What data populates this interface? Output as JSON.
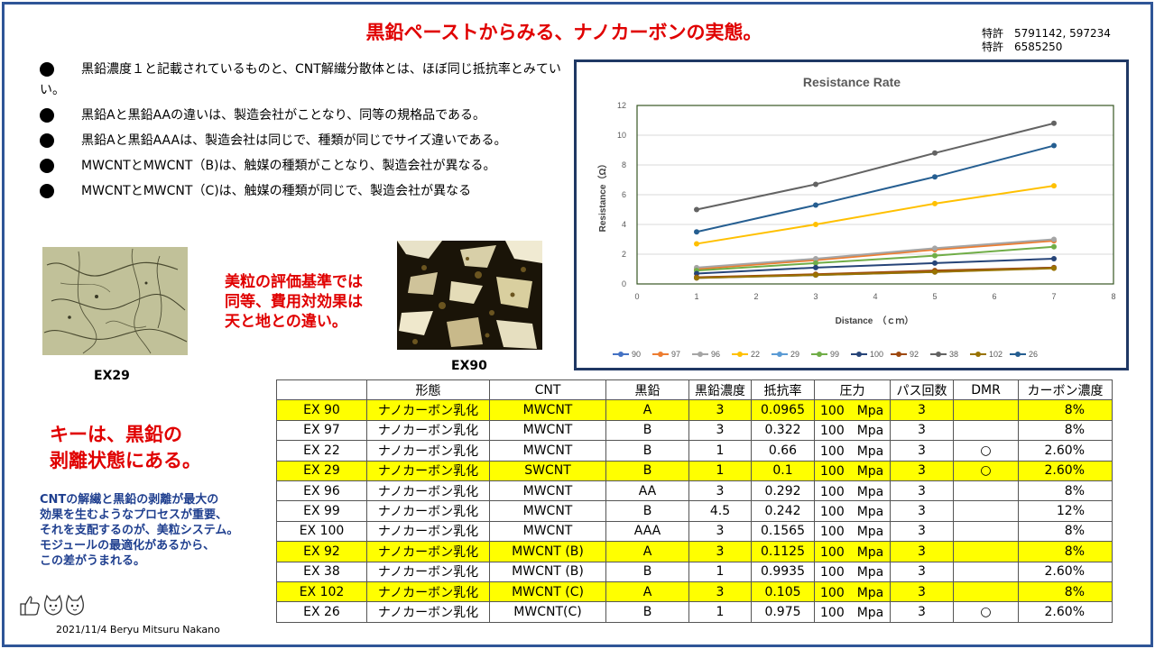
{
  "title": "黒鉛ペーストからみる、ナノカーボンの実態。",
  "patents": [
    "特許　5791142,  597234",
    "特許　6585250"
  ],
  "bullets": [
    "黒鉛濃度１と記載されているものと、CNT解繊分散体とは、ほぼ同じ抵抗率とみていい。",
    "黒鉛Aと黒鉛AAの違いは、製造会社がことなり、同等の規格品である。",
    "黒鉛Aと黒鉛AAAは、製造会社は同じで、種類が同じでサイズ違いである。",
    "MWCNTとMWCNT（B)は、触媒の種類がことなり、製造会社が異なる。",
    "MWCNTとMWCNT（C)は、触媒の種類が同じで、製造会社が異なる"
  ],
  "photos": {
    "left_label": "EX29",
    "right_label": "EX90"
  },
  "red_note": [
    "美粒の評価基準では",
    "同等、費用対効果は",
    "天と地との違い。"
  ],
  "key_note": [
    "キーは、黒鉛の",
    "剥離状態にある。"
  ],
  "blue_note": [
    "CNTの解繊と黒鉛の剥離が最大の",
    "効果を生むようなプロセスが重要、",
    "それを支配するのが、美粒システム。",
    "モジュールの最適化があるから、",
    "この差がうまれる。"
  ],
  "footer": "2021/11/4  Beryu Mitsuru Nakano",
  "icons": [
    "thumbs-up-icon",
    "cat-face-icon",
    "cat-face-icon"
  ],
  "table": {
    "headers": [
      "",
      "形態",
      "CNT",
      "黒鉛",
      "黒鉛濃度",
      "抵抗率",
      "圧力",
      "パス回数",
      "DMR",
      "カーボン濃度"
    ],
    "rows": [
      {
        "name": "EX 90",
        "form": "ナノカーボン乳化",
        "cnt": "MWCNT",
        "graphite": "A",
        "conc": "3",
        "resistivity": "0.0965",
        "pressure": "100　Mpa",
        "passes": "3",
        "dmr": "",
        "carbon": "8%",
        "highlight": true
      },
      {
        "name": "EX 97",
        "form": "ナノカーボン乳化",
        "cnt": "MWCNT",
        "graphite": "B",
        "conc": "3",
        "resistivity": "0.322",
        "pressure": "100　Mpa",
        "passes": "3",
        "dmr": "",
        "carbon": "8%",
        "highlight": false
      },
      {
        "name": "EX 22",
        "form": "ナノカーボン乳化",
        "cnt": "MWCNT",
        "graphite": "B",
        "conc": "1",
        "resistivity": "0.66",
        "pressure": "100　Mpa",
        "passes": "3",
        "dmr": "○",
        "carbon": "2.60%",
        "highlight": false
      },
      {
        "name": "EX 29",
        "form": "ナノカーボン乳化",
        "cnt": "SWCNT",
        "graphite": "B",
        "conc": "1",
        "resistivity": "0.1",
        "pressure": "100　Mpa",
        "passes": "3",
        "dmr": "○",
        "carbon": "2.60%",
        "highlight": true
      },
      {
        "name": "EX 96",
        "form": "ナノカーボン乳化",
        "cnt": "MWCNT",
        "graphite": "AA",
        "conc": "3",
        "resistivity": "0.292",
        "pressure": "100　Mpa",
        "passes": "3",
        "dmr": "",
        "carbon": "8%",
        "highlight": false
      },
      {
        "name": "EX 99",
        "form": "ナノカーボン乳化",
        "cnt": "MWCNT",
        "graphite": "B",
        "conc": "4.5",
        "resistivity": "0.242",
        "pressure": "100　Mpa",
        "passes": "3",
        "dmr": "",
        "carbon": "12%",
        "highlight": false
      },
      {
        "name": "EX 100",
        "form": "ナノカーボン乳化",
        "cnt": "MWCNT",
        "graphite": "AAA",
        "conc": "3",
        "resistivity": "0.1565",
        "pressure": "100　Mpa",
        "passes": "3",
        "dmr": "",
        "carbon": "8%",
        "highlight": false
      },
      {
        "name": "EX 92",
        "form": "ナノカーボン乳化",
        "cnt": "MWCNT (B)",
        "graphite": "A",
        "conc": "3",
        "resistivity": "0.1125",
        "pressure": "100　Mpa",
        "passes": "3",
        "dmr": "",
        "carbon": "8%",
        "highlight": true
      },
      {
        "name": "EX 38",
        "form": "ナノカーボン乳化",
        "cnt": "MWCNT (B)",
        "graphite": "B",
        "conc": "1",
        "resistivity": "0.9935",
        "pressure": "100　Mpa",
        "passes": "3",
        "dmr": "",
        "carbon": "2.60%",
        "highlight": false
      },
      {
        "name": "EX 102",
        "form": "ナノカーボン乳化",
        "cnt": "MWCNT (C)",
        "graphite": "A",
        "conc": "3",
        "resistivity": "0.105",
        "pressure": "100　Mpa",
        "passes": "3",
        "dmr": "",
        "carbon": "8%",
        "highlight": true
      },
      {
        "name": "EX 26",
        "form": "ナノカーボン乳化",
        "cnt": "MWCNT(C)",
        "graphite": "B",
        "conc": "1",
        "resistivity": "0.975",
        "pressure": "100　Mpa",
        "passes": "3",
        "dmr": "○",
        "carbon": "2.60%",
        "highlight": false
      }
    ]
  },
  "chart_data": {
    "type": "line",
    "title": "Resistance Rate",
    "xlabel": "Distance　（ｃｍ）",
    "ylabel": "Resistance（Ω）",
    "xlim": [
      0,
      8
    ],
    "ylim": [
      0,
      12
    ],
    "xticks": [
      0,
      1,
      2,
      3,
      4,
      5,
      6,
      7,
      8
    ],
    "yticks": [
      0,
      2,
      4,
      6,
      8,
      10,
      12
    ],
    "grid": true,
    "legend": "bottom",
    "x": [
      1,
      3,
      5,
      7
    ],
    "series": [
      {
        "name": "90",
        "color": "#4472c4",
        "values": [
          0.4,
          0.6,
          0.8,
          1.1
        ]
      },
      {
        "name": "97",
        "color": "#ed7d31",
        "values": [
          1.0,
          1.6,
          2.3,
          2.9
        ]
      },
      {
        "name": "96",
        "color": "#a5a5a5",
        "values": [
          1.1,
          1.7,
          2.4,
          3.0
        ]
      },
      {
        "name": "22",
        "color": "#ffc000",
        "values": [
          2.7,
          4.0,
          5.4,
          6.6
        ]
      },
      {
        "name": "29",
        "color": "#5b9bd5",
        "values": [
          0.45,
          0.6,
          0.85,
          1.1
        ]
      },
      {
        "name": "99",
        "color": "#70ad47",
        "values": [
          0.9,
          1.4,
          1.9,
          2.5
        ]
      },
      {
        "name": "100",
        "color": "#264478",
        "values": [
          0.7,
          1.1,
          1.4,
          1.7
        ]
      },
      {
        "name": "92",
        "color": "#9e480e",
        "values": [
          0.45,
          0.65,
          0.9,
          1.1
        ]
      },
      {
        "name": "38",
        "color": "#636363",
        "values": [
          5.0,
          6.7,
          8.8,
          10.8
        ]
      },
      {
        "name": "102",
        "color": "#997300",
        "values": [
          0.4,
          0.6,
          0.8,
          1.05
        ]
      },
      {
        "name": "26",
        "color": "#255e91",
        "values": [
          3.5,
          5.3,
          7.2,
          9.3
        ]
      }
    ]
  }
}
